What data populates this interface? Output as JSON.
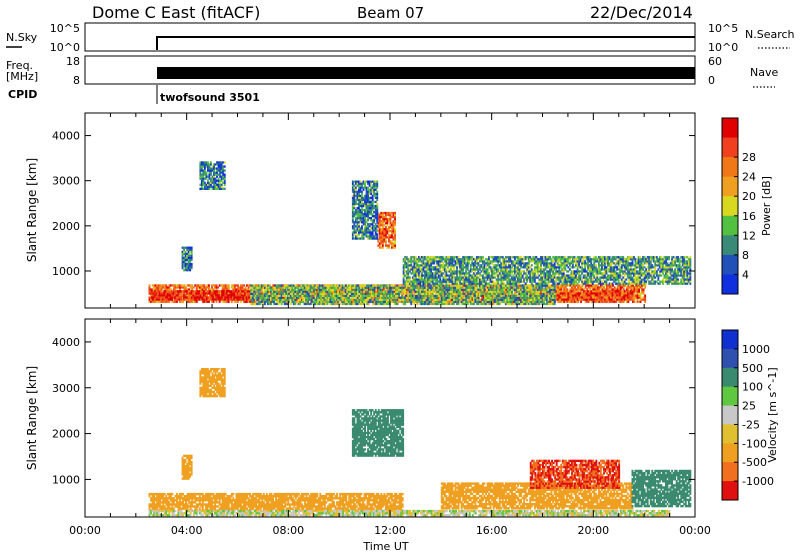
{
  "header": {
    "station": "Dome C East (fitACF)",
    "beam": "Beam 07",
    "date": "22/Dec/2014"
  },
  "summary_panels": {
    "nsky_label": "N.Sky",
    "nsky_ticks": [
      "10^5",
      "10^0"
    ],
    "nsearch_label": "N.Search",
    "nsearch_ticks": [
      "10^5",
      "10^0"
    ],
    "freq_label_1": "Freq.",
    "freq_label_2": "[MHz]",
    "freq_ticks": [
      "18",
      "8"
    ],
    "nave_label": "Nave",
    "nave_ticks": [
      "60",
      "0"
    ],
    "cpid_label": "CPID",
    "cpid_value": "twofsound 3501"
  },
  "colors": {
    "power_scale": [
      "#1030e0",
      "#2050b8",
      "#3a8a78",
      "#52c040",
      "#d8d820",
      "#f0a020",
      "#f07818",
      "#f04020",
      "#e00000"
    ],
    "velocity_scale": [
      "#1030d0",
      "#3050b0",
      "#3a8a70",
      "#60c840",
      "#c8c8c8",
      "#e0c030",
      "#f0a020",
      "#f07020",
      "#e01010"
    ]
  },
  "chart_data": [
    {
      "type": "heatmap",
      "panel": "power",
      "xlabel": "",
      "ylabel": "Slant Range [km]",
      "xlim": [
        0,
        24
      ],
      "ylim": [
        180,
        4500
      ],
      "yticks": [
        1000,
        2000,
        3000,
        4000
      ],
      "colorbar": {
        "label": "Power [dB]",
        "range": [
          0,
          32
        ],
        "ticks": [
          "4",
          "8",
          "12",
          "16",
          "20",
          "24",
          "28"
        ]
      },
      "data_start_ut": 2.5,
      "regions": [
        {
          "x": [
            2.5,
            22.0
          ],
          "y": [
            300,
            700
          ],
          "value": 24
        },
        {
          "x": [
            2.6,
            6.5
          ],
          "y": [
            350,
            550
          ],
          "value": 29
        },
        {
          "x": [
            18.5,
            21.5
          ],
          "y": [
            350,
            550
          ],
          "value": 27
        },
        {
          "x": [
            6.5,
            18.5
          ],
          "y": [
            250,
            700
          ],
          "value": 12
        },
        {
          "x": [
            12.5,
            23.8
          ],
          "y": [
            700,
            1300
          ],
          "value": 10
        },
        {
          "x": [
            11.5,
            12.2
          ],
          "y": [
            1500,
            2300
          ],
          "value": 24
        },
        {
          "x": [
            10.5,
            11.5
          ],
          "y": [
            1700,
            3000
          ],
          "value": 8
        },
        {
          "x": [
            4.5,
            5.5
          ],
          "y": [
            2800,
            3400
          ],
          "value": 8
        },
        {
          "x": [
            3.8,
            4.2
          ],
          "y": [
            1000,
            1500
          ],
          "value": 8
        }
      ]
    },
    {
      "type": "heatmap",
      "panel": "velocity",
      "xlabel": "Time UT",
      "ylabel": "Slant Range [km]",
      "xlim": [
        0,
        24
      ],
      "ylim": [
        180,
        4500
      ],
      "xticks": [
        "00:00",
        "04:00",
        "08:00",
        "12:00",
        "16:00",
        "20:00",
        "00:00"
      ],
      "yticks": [
        1000,
        2000,
        3000,
        4000
      ],
      "colorbar": {
        "label": "Velocity [m s^-1]",
        "ticks": [
          "1000",
          "500",
          "100",
          "25",
          "-25",
          "-100",
          "-500",
          "-1000"
        ]
      },
      "data_start_ut": 2.5,
      "regions": [
        {
          "x": [
            2.5,
            12.5
          ],
          "y": [
            300,
            700
          ],
          "value": -120
        },
        {
          "x": [
            2.5,
            23.0
          ],
          "y": [
            200,
            320
          ],
          "value": 0
        },
        {
          "x": [
            14.0,
            21.5
          ],
          "y": [
            350,
            900
          ],
          "value": -150
        },
        {
          "x": [
            17.5,
            21.0
          ],
          "y": [
            800,
            1400
          ],
          "value": -700
        },
        {
          "x": [
            21.5,
            23.8
          ],
          "y": [
            400,
            1200
          ],
          "value": 150
        },
        {
          "x": [
            10.5,
            12.5
          ],
          "y": [
            1500,
            2500
          ],
          "value": 120
        },
        {
          "x": [
            4.5,
            5.5
          ],
          "y": [
            2800,
            3400
          ],
          "value": -150
        },
        {
          "x": [
            3.8,
            4.2
          ],
          "y": [
            1000,
            1500
          ],
          "value": -150
        }
      ]
    }
  ]
}
